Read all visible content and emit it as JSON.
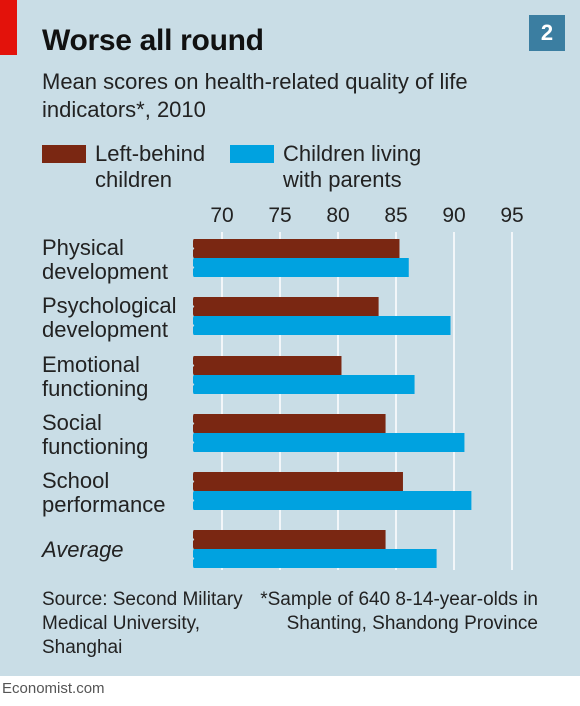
{
  "header": {
    "title": "Worse all round",
    "badge": "2"
  },
  "subtitle": "Mean scores on health-related quality of life indicators*, 2010",
  "legend": [
    {
      "label": "Left-behind children",
      "color": "#7a2712"
    },
    {
      "label": "Children living with parents",
      "color": "#00a2e0"
    }
  ],
  "chart_data": {
    "type": "bar",
    "orientation": "horizontal",
    "categories": [
      "Physical development",
      "Psychological development",
      "Emotional functioning",
      "Social functioning",
      "School performance",
      "Average"
    ],
    "series": [
      {
        "name": "Left-behind children",
        "values": [
          85.3,
          83.5,
          80.3,
          84.1,
          85.6,
          84.1
        ],
        "color": "#7a2712"
      },
      {
        "name": "Children living with parents",
        "values": [
          86.1,
          89.7,
          86.6,
          90.9,
          91.5,
          88.5
        ],
        "color": "#00a2e0"
      }
    ],
    "x_ticks": [
      "70",
      "75",
      "80",
      "85",
      "90",
      "95"
    ],
    "xlim": [
      67.5,
      97.5
    ],
    "grid": true,
    "legend_position": "top"
  },
  "source": "Source: Second Military Medical University, Shanghai",
  "footnote": "*Sample of 640 8-14-year-olds in Shanting, Shandong Province",
  "credit": "Economist.com"
}
